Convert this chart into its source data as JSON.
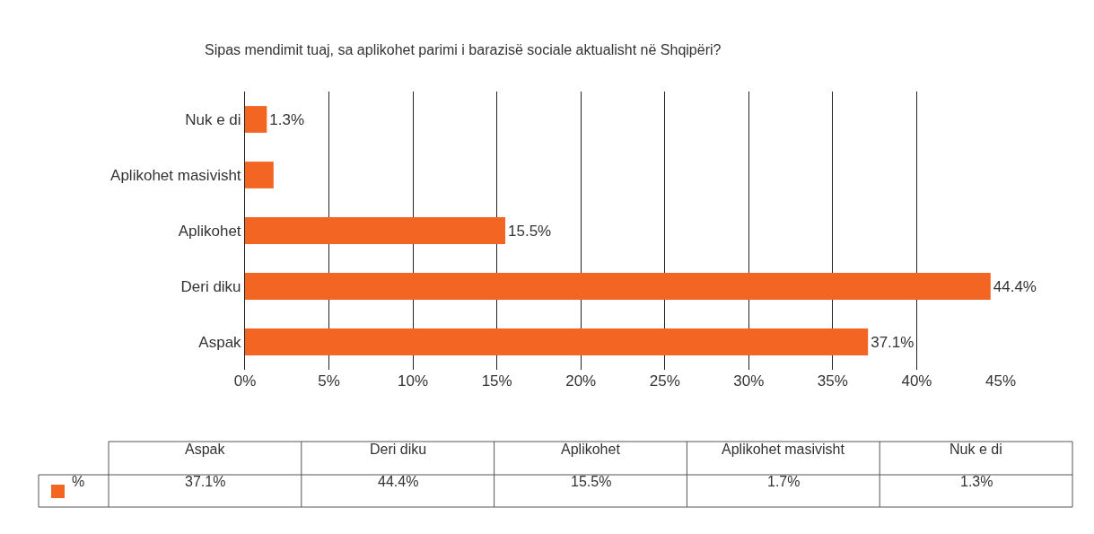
{
  "chart_data": {
    "type": "bar",
    "orientation": "horizontal",
    "title": "Sipas mendimit tuaj, sa aplikohet parimi i barazisë sociale aktualisht në Shqipëri?",
    "categories": [
      "Nuk e di",
      "Aplikohet masivisht",
      "Aplikohet",
      "Deri diku",
      "Aspak"
    ],
    "series": [
      {
        "name": "%",
        "color": "#f26522",
        "values": [
          1.3,
          1.7,
          15.5,
          44.4,
          37.1
        ],
        "value_labels": [
          "1.3%",
          null,
          "15.5%",
          "44.4%",
          "37.1%"
        ]
      }
    ],
    "xlim": [
      0,
      45
    ],
    "xticks": [
      {
        "value": 0,
        "label": "0%"
      },
      {
        "value": 5,
        "label": "5%"
      },
      {
        "value": 10,
        "label": "10%"
      },
      {
        "value": 15,
        "label": "15%"
      },
      {
        "value": 20,
        "label": "20%"
      },
      {
        "value": 25,
        "label": "25%"
      },
      {
        "value": 30,
        "label": "30%"
      },
      {
        "value": 35,
        "label": "35%"
      },
      {
        "value": 40,
        "label": "40%"
      },
      {
        "value": 45,
        "label": "45%"
      }
    ],
    "grid": "x",
    "legend": "bottom left",
    "annotations": [
      "37.1%",
      "44.4%",
      "15.5%",
      "1.7%",
      "1.3%"
    ]
  }
}
